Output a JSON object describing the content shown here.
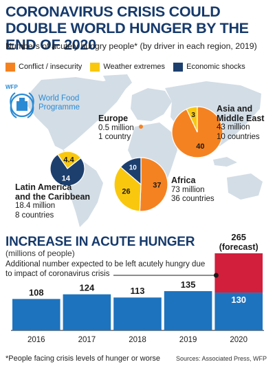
{
  "title": "CORONAVIRUS CRISIS COULD DOUBLE WORLD HUNGER BY THE END OF 2020",
  "subtitle": "Numbers of acutely hungry people* (by driver in each region, 2019)",
  "legend": [
    {
      "label": "Conflict / insecurity",
      "color": "#f58220"
    },
    {
      "label": "Weather extremes",
      "color": "#f9c80e"
    },
    {
      "label": "Economic shocks",
      "color": "#1c3f6e"
    }
  ],
  "logo": {
    "top": "WFP",
    "name_line1": "World Food",
    "name_line2": "Programme"
  },
  "regions": {
    "europe": {
      "name": "Europe",
      "people": "0.5 million",
      "countries": "1 country"
    },
    "asia": {
      "name_line1": "Asia and",
      "name_line2": "Middle East",
      "people": "43 million",
      "countries": "10 countries"
    },
    "africa": {
      "name": "Africa",
      "people": "73 million",
      "countries": "36 countries"
    },
    "latam": {
      "name_line1": "Latin America",
      "name_line2": "and the Caribbean",
      "people": "18.4 million",
      "countries": "8 countries"
    }
  },
  "section2": {
    "title": "INCREASE IN ACUTE HUNGER",
    "subtitle": "(millions of people)",
    "note": "Additional number expected to be left acutely hungry due to impact of coronavirus crisis",
    "forecast_total": "265",
    "forecast_label": "(forecast)"
  },
  "footnote": "*People facing crisis levels of hunger or worse",
  "source": "Sources: Associated Press, WFP",
  "chart_data": [
    {
      "type": "pie",
      "region": "Asia and Middle East",
      "slices": [
        {
          "name": "Conflict / insecurity",
          "value": 40,
          "color": "#f58220"
        },
        {
          "name": "Weather extremes",
          "value": 3,
          "color": "#f9c80e"
        }
      ]
    },
    {
      "type": "pie",
      "region": "Africa",
      "slices": [
        {
          "name": "Conflict / insecurity",
          "value": 37,
          "color": "#f58220"
        },
        {
          "name": "Weather extremes",
          "value": 26,
          "color": "#f9c80e"
        },
        {
          "name": "Economic shocks",
          "value": 10,
          "color": "#1c3f6e"
        }
      ]
    },
    {
      "type": "pie",
      "region": "Latin America and the Caribbean",
      "slices": [
        {
          "name": "Weather extremes",
          "value": 4.4,
          "color": "#f9c80e"
        },
        {
          "name": "Economic shocks",
          "value": 14,
          "color": "#1c3f6e"
        }
      ]
    },
    {
      "type": "bar",
      "title": "INCREASE IN ACUTE HUNGER",
      "ylabel": "(millions of people)",
      "categories": [
        "2016",
        "2017",
        "2018",
        "2019",
        "2020"
      ],
      "series": [
        {
          "values": [
            108,
            124,
            113,
            135,
            130
          ],
          "color": "#1e73be"
        },
        {
          "values": [
            0,
            0,
            0,
            0,
            135
          ],
          "color": "#d21f3c"
        }
      ],
      "ylim": [
        0,
        265
      ],
      "colors": {
        "base": "#1e73be",
        "added": "#d21f3c"
      }
    }
  ]
}
